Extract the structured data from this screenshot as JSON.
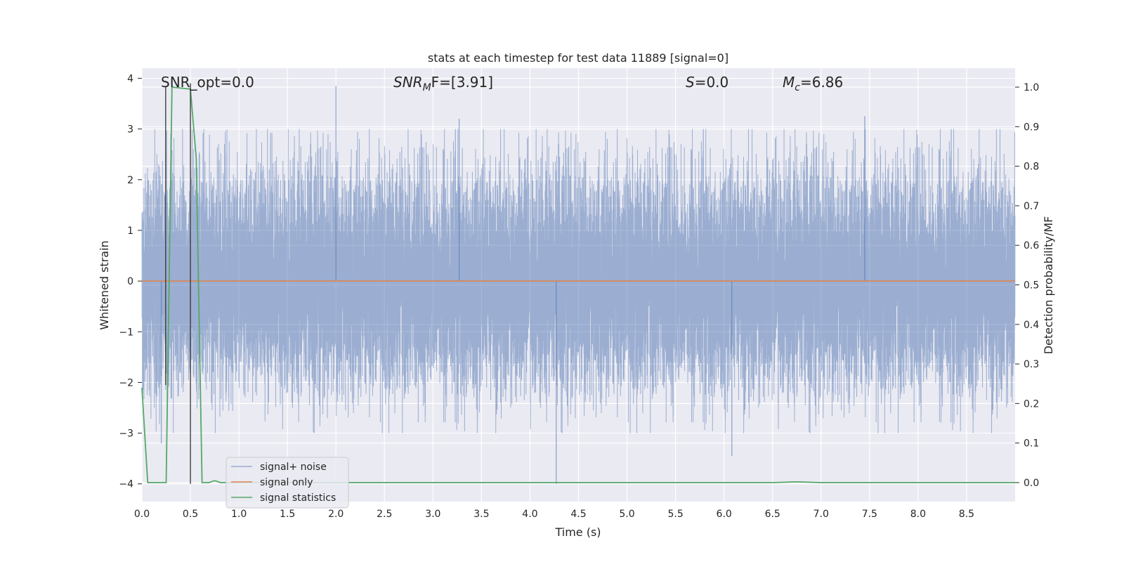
{
  "chart_data": {
    "type": "line",
    "title": "stats at each timestep for test data 11889 [signal=0]",
    "xlabel": "Time (s)",
    "ylabel": "Whitened strain",
    "y2label": "Detection probability/MF",
    "xlim": [
      0.0,
      9.0
    ],
    "ylim": [
      -4.35,
      4.2
    ],
    "y2lim": [
      -0.048,
      1.048
    ],
    "grid": true,
    "xticks": [
      0.0,
      0.5,
      1.0,
      1.5,
      2.0,
      2.5,
      3.0,
      3.5,
      4.0,
      4.5,
      5.0,
      5.5,
      6.0,
      6.5,
      7.0,
      7.5,
      8.0,
      8.5
    ],
    "xtick_labels": [
      "0.0",
      "0.5",
      "1.0",
      "1.5",
      "2.0",
      "2.5",
      "3.0",
      "3.5",
      "4.0",
      "4.5",
      "5.0",
      "5.5",
      "6.0",
      "6.5",
      "7.0",
      "7.5",
      "8.0",
      "8.5"
    ],
    "yticks": [
      4,
      3,
      2,
      1,
      0,
      -1,
      -2,
      -3,
      -4
    ],
    "ytick_labels": [
      "4",
      "3",
      "2",
      "1",
      "0",
      "−1",
      "−2",
      "−3",
      "−4"
    ],
    "y2ticks": [
      1.0,
      0.9,
      0.8,
      0.7,
      0.6,
      0.5,
      0.4,
      0.3,
      0.2,
      0.1,
      0.0
    ],
    "y2tick_labels": [
      "1.0",
      "0.9",
      "0.8",
      "0.7",
      "0.6",
      "0.5",
      "0.4",
      "0.3",
      "0.2",
      "0.1",
      "0.0"
    ],
    "annotations": {
      "snr_opt": "SNR_opt=0.0",
      "snr_mf_base": "SNR",
      "snr_mf_sub": "M",
      "snr_mf_rest": "F=[3.91]",
      "s_stat": "=0.0",
      "s_symbol": "S",
      "mc_base": "M",
      "mc_sub": "c",
      "mc_rest": "=6.86"
    },
    "legend": {
      "position": "lower-left",
      "entries": [
        "signal+ noise",
        "signal only",
        "signal statistics"
      ]
    },
    "series": [
      {
        "name": "signal+ noise",
        "axis": "left",
        "style": "noise",
        "sample_rate": 2048,
        "envelope_std": 1.05,
        "highlight_peaks": [
          {
            "x": 2.0,
            "y": 3.85
          },
          {
            "x": 4.27,
            "y": -4.0
          },
          {
            "x": 6.08,
            "y": -3.45
          },
          {
            "x": 3.27,
            "y": 3.2
          },
          {
            "x": 0.2,
            "y": -3.2
          },
          {
            "x": 7.45,
            "y": 3.25
          }
        ]
      },
      {
        "name": "signal only",
        "axis": "left",
        "x": [
          0.0,
          9.0
        ],
        "y": [
          0.0,
          0.0
        ]
      },
      {
        "name": "signal statistics",
        "axis": "right",
        "x": [
          0.0,
          0.06,
          0.25,
          0.31,
          0.5,
          0.56,
          0.62,
          0.69,
          0.75,
          0.81,
          0.87,
          1.0,
          2.0,
          3.0,
          4.0,
          5.0,
          6.0,
          6.5,
          6.75,
          7.0,
          8.0,
          9.0
        ],
        "y": [
          0.24,
          0.0,
          0.0,
          1.0,
          0.995,
          0.82,
          0.0,
          0.0,
          0.005,
          0.0,
          0.0,
          0.0,
          0.0,
          0.0,
          0.0,
          0.0,
          0.0,
          0.0,
          0.002,
          0.0,
          0.0,
          0.0
        ]
      }
    ],
    "vlines": [
      {
        "x": 0.245,
        "y_from": 3.85,
        "y_to": -2.05
      },
      {
        "x": 0.5,
        "y_from": 3.9,
        "y_to": -4.0
      }
    ],
    "colors": {
      "background": "#eaeaf2",
      "grid": "#ffffff",
      "noise": "#4c72b0",
      "signal_only": "#dd8452",
      "statistics": "#55a868",
      "vline": "#333333",
      "text": "#262626"
    }
  }
}
